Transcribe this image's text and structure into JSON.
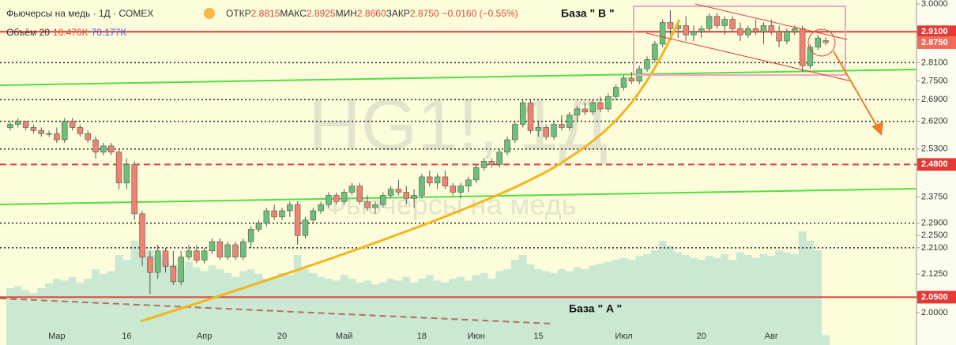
{
  "chart_data": {
    "type": "candlestick",
    "title": "Фьючерсы на медь · 1Д · COMEX",
    "legend_ohlc": [
      [
        "ОТКР",
        "2.8815"
      ],
      [
        "МАКС",
        "2.8925"
      ],
      [
        "МИН",
        "2.8660"
      ],
      [
        "ЗАКР",
        "2.8750"
      ]
    ],
    "change": "−0.0160 (−0.55%)",
    "volume_legend": [
      "Объём 20",
      "10.476K",
      "70.177K"
    ],
    "watermark": [
      "HG1!, 1Д",
      "Фьючерсы на медь"
    ],
    "annotations": [
      "База \" B \"",
      "База \" A \""
    ],
    "up_color": "#6cc07a",
    "down_color": "#ee8470",
    "volume_color": "#8fd0c6",
    "ylim": [
      1.895,
      3.013
    ],
    "volume_ylim": [
      0,
      150
    ],
    "yticks": [
      {
        "value": 3.0,
        "label": "3.0000"
      },
      {
        "value": 2.91,
        "label": "2.9100",
        "color": "#e53935",
        "line": "solid"
      },
      {
        "value": 2.875,
        "label": "2.8750",
        "color": "#ef6a5a"
      },
      {
        "value": 2.81,
        "label": "2.8100",
        "line": "dotted"
      },
      {
        "value": 2.75,
        "label": "2.7500"
      },
      {
        "value": 2.69,
        "label": "2.6900",
        "line": "dotted"
      },
      {
        "value": 2.62,
        "label": "2.6200",
        "line": "dotted"
      },
      {
        "value": 2.53,
        "label": "2.5300",
        "line": "dotted"
      },
      {
        "value": 2.48,
        "label": "2.4800",
        "color": "#e53935",
        "line": "dashed"
      },
      {
        "value": 2.375,
        "label": "2.3750"
      },
      {
        "value": 2.29,
        "label": "2.2900",
        "line": "dotted"
      },
      {
        "value": 2.25,
        "label": "2.2500"
      },
      {
        "value": 2.21,
        "label": "2.2100",
        "line": "dotted"
      },
      {
        "value": 2.125,
        "label": "2.1250"
      },
      {
        "value": 2.05,
        "label": "2.0500",
        "color": "#e53935",
        "line": "solid"
      },
      {
        "value": 2.0,
        "label": "2.0000"
      }
    ],
    "categories": [
      null,
      null,
      null,
      null,
      null,
      null,
      "Мар",
      null,
      null,
      null,
      null,
      null,
      null,
      null,
      null,
      "16",
      null,
      null,
      null,
      null,
      null,
      null,
      null,
      null,
      null,
      "Апр",
      null,
      null,
      null,
      null,
      null,
      null,
      null,
      null,
      null,
      "20",
      null,
      null,
      null,
      null,
      null,
      null,
      null,
      "Май",
      null,
      null,
      null,
      null,
      null,
      null,
      null,
      null,
      null,
      "18",
      null,
      null,
      null,
      null,
      null,
      null,
      "Июн",
      null,
      null,
      null,
      null,
      null,
      null,
      null,
      "15",
      null,
      null,
      null,
      null,
      null,
      null,
      null,
      null,
      null,
      null,
      "Июл",
      null,
      null,
      null,
      null,
      null,
      null,
      null,
      null,
      null,
      "20",
      null,
      null,
      null,
      null,
      null,
      null,
      null,
      null,
      "Авг",
      null,
      null,
      null,
      null,
      null,
      null,
      null
    ],
    "ohlc": [
      [
        2.6,
        2.62,
        2.59,
        2.61
      ],
      [
        2.61,
        2.63,
        2.6,
        2.62
      ],
      [
        2.62,
        2.62,
        2.59,
        2.6
      ],
      [
        2.6,
        2.61,
        2.58,
        2.59
      ],
      [
        2.59,
        2.6,
        2.57,
        2.58
      ],
      [
        2.58,
        2.59,
        2.57,
        2.58
      ],
      [
        2.58,
        2.6,
        2.55,
        2.56
      ],
      [
        2.56,
        2.63,
        2.55,
        2.62
      ],
      [
        2.62,
        2.63,
        2.59,
        2.6
      ],
      [
        2.6,
        2.61,
        2.57,
        2.58
      ],
      [
        2.58,
        2.59,
        2.55,
        2.56
      ],
      [
        2.56,
        2.57,
        2.5,
        2.52
      ],
      [
        2.52,
        2.55,
        2.51,
        2.54
      ],
      [
        2.54,
        2.55,
        2.51,
        2.52
      ],
      [
        2.52,
        2.53,
        2.4,
        2.42
      ],
      [
        2.42,
        2.5,
        2.4,
        2.48
      ],
      [
        2.48,
        2.49,
        2.3,
        2.32
      ],
      [
        2.32,
        2.33,
        2.15,
        2.18
      ],
      [
        2.18,
        2.2,
        2.06,
        2.13
      ],
      [
        2.13,
        2.22,
        2.11,
        2.2
      ],
      [
        2.2,
        2.21,
        2.13,
        2.15
      ],
      [
        2.15,
        2.2,
        2.09,
        2.1
      ],
      [
        2.1,
        2.2,
        2.09,
        2.18
      ],
      [
        2.18,
        2.22,
        2.17,
        2.2
      ],
      [
        2.2,
        2.22,
        2.16,
        2.17
      ],
      [
        2.17,
        2.21,
        2.16,
        2.2
      ],
      [
        2.2,
        2.24,
        2.19,
        2.23
      ],
      [
        2.23,
        2.24,
        2.17,
        2.18
      ],
      [
        2.18,
        2.23,
        2.17,
        2.22
      ],
      [
        2.22,
        2.23,
        2.17,
        2.18
      ],
      [
        2.18,
        2.24,
        2.17,
        2.23
      ],
      [
        2.23,
        2.28,
        2.21,
        2.27
      ],
      [
        2.27,
        2.3,
        2.26,
        2.29
      ],
      [
        2.29,
        2.34,
        2.28,
        2.33
      ],
      [
        2.33,
        2.35,
        2.3,
        2.31
      ],
      [
        2.31,
        2.34,
        2.3,
        2.33
      ],
      [
        2.33,
        2.36,
        2.31,
        2.35
      ],
      [
        2.35,
        2.36,
        2.22,
        2.25
      ],
      [
        2.25,
        2.31,
        2.24,
        2.3
      ],
      [
        2.3,
        2.34,
        2.29,
        2.33
      ],
      [
        2.33,
        2.36,
        2.32,
        2.35
      ],
      [
        2.35,
        2.39,
        2.34,
        2.38
      ],
      [
        2.38,
        2.39,
        2.35,
        2.36
      ],
      [
        2.36,
        2.4,
        2.35,
        2.39
      ],
      [
        2.39,
        2.42,
        2.38,
        2.41
      ],
      [
        2.41,
        2.42,
        2.35,
        2.36
      ],
      [
        2.36,
        2.38,
        2.33,
        2.34
      ],
      [
        2.34,
        2.36,
        2.32,
        2.35
      ],
      [
        2.35,
        2.39,
        2.34,
        2.38
      ],
      [
        2.38,
        2.41,
        2.37,
        2.4
      ],
      [
        2.4,
        2.43,
        2.38,
        2.39
      ],
      [
        2.39,
        2.41,
        2.35,
        2.37
      ],
      [
        2.37,
        2.4,
        2.34,
        2.38
      ],
      [
        2.38,
        2.45,
        2.37,
        2.44
      ],
      [
        2.44,
        2.46,
        2.41,
        2.42
      ],
      [
        2.42,
        2.45,
        2.4,
        2.44
      ],
      [
        2.44,
        2.46,
        2.4,
        2.41
      ],
      [
        2.41,
        2.42,
        2.38,
        2.39
      ],
      [
        2.39,
        2.42,
        2.37,
        2.41
      ],
      [
        2.41,
        2.44,
        2.39,
        2.43
      ],
      [
        2.43,
        2.48,
        2.42,
        2.47
      ],
      [
        2.47,
        2.5,
        2.46,
        2.49
      ],
      [
        2.49,
        2.5,
        2.47,
        2.48
      ],
      [
        2.48,
        2.53,
        2.47,
        2.52
      ],
      [
        2.52,
        2.57,
        2.51,
        2.56
      ],
      [
        2.56,
        2.62,
        2.55,
        2.61
      ],
      [
        2.61,
        2.69,
        2.6,
        2.68
      ],
      [
        2.68,
        2.69,
        2.58,
        2.59
      ],
      [
        2.59,
        2.62,
        2.57,
        2.6
      ],
      [
        2.6,
        2.61,
        2.56,
        2.57
      ],
      [
        2.57,
        2.62,
        2.56,
        2.61
      ],
      [
        2.61,
        2.64,
        2.59,
        2.6
      ],
      [
        2.6,
        2.65,
        2.59,
        2.64
      ],
      [
        2.64,
        2.67,
        2.62,
        2.66
      ],
      [
        2.66,
        2.68,
        2.64,
        2.65
      ],
      [
        2.65,
        2.69,
        2.64,
        2.68
      ],
      [
        2.68,
        2.7,
        2.65,
        2.66
      ],
      [
        2.66,
        2.71,
        2.65,
        2.7
      ],
      [
        2.7,
        2.74,
        2.69,
        2.73
      ],
      [
        2.73,
        2.77,
        2.72,
        2.76
      ],
      [
        2.76,
        2.78,
        2.74,
        2.75
      ],
      [
        2.75,
        2.8,
        2.74,
        2.79
      ],
      [
        2.79,
        2.83,
        2.78,
        2.82
      ],
      [
        2.82,
        2.88,
        2.81,
        2.87
      ],
      [
        2.87,
        2.95,
        2.86,
        2.94
      ],
      [
        2.94,
        2.98,
        2.9,
        2.92
      ],
      [
        2.92,
        2.95,
        2.89,
        2.93
      ],
      [
        2.93,
        2.96,
        2.88,
        2.9
      ],
      [
        2.9,
        2.93,
        2.88,
        2.91
      ],
      [
        2.91,
        2.93,
        2.89,
        2.92
      ],
      [
        2.92,
        2.97,
        2.91,
        2.96
      ],
      [
        2.96,
        2.97,
        2.92,
        2.93
      ],
      [
        2.93,
        2.96,
        2.9,
        2.95
      ],
      [
        2.95,
        2.96,
        2.91,
        2.92
      ],
      [
        2.92,
        2.94,
        2.88,
        2.9
      ],
      [
        2.9,
        2.93,
        2.89,
        2.92
      ],
      [
        2.92,
        2.95,
        2.9,
        2.91
      ],
      [
        2.91,
        2.94,
        2.87,
        2.93
      ],
      [
        2.93,
        2.95,
        2.9,
        2.91
      ],
      [
        2.91,
        2.93,
        2.86,
        2.88
      ],
      [
        2.88,
        2.92,
        2.87,
        2.91
      ],
      [
        2.91,
        2.93,
        2.9,
        2.92
      ],
      [
        2.92,
        2.93,
        2.78,
        2.8
      ],
      [
        2.8,
        2.87,
        2.79,
        2.86
      ],
      [
        2.86,
        2.9,
        2.85,
        2.89
      ],
      [
        2.8815,
        2.8925,
        2.866,
        2.875
      ]
    ],
    "volume": [
      60,
      62,
      58,
      55,
      60,
      65,
      70,
      68,
      72,
      66,
      70,
      80,
      75,
      78,
      95,
      90,
      110,
      105,
      100,
      95,
      90,
      85,
      80,
      88,
      82,
      78,
      84,
      80,
      76,
      72,
      78,
      80,
      75,
      70,
      72,
      76,
      74,
      95,
      80,
      76,
      72,
      70,
      68,
      74,
      70,
      66,
      68,
      64,
      66,
      70,
      68,
      72,
      66,
      70,
      74,
      68,
      66,
      70,
      72,
      68,
      74,
      76,
      70,
      78,
      80,
      90,
      95,
      85,
      80,
      78,
      76,
      80,
      78,
      82,
      80,
      84,
      86,
      88,
      90,
      92,
      90,
      94,
      96,
      100,
      110,
      105,
      98,
      95,
      92,
      90,
      94,
      92,
      96,
      90,
      98,
      95,
      92,
      96,
      94,
      100,
      98,
      96,
      120,
      110,
      100,
      10.476
    ]
  }
}
